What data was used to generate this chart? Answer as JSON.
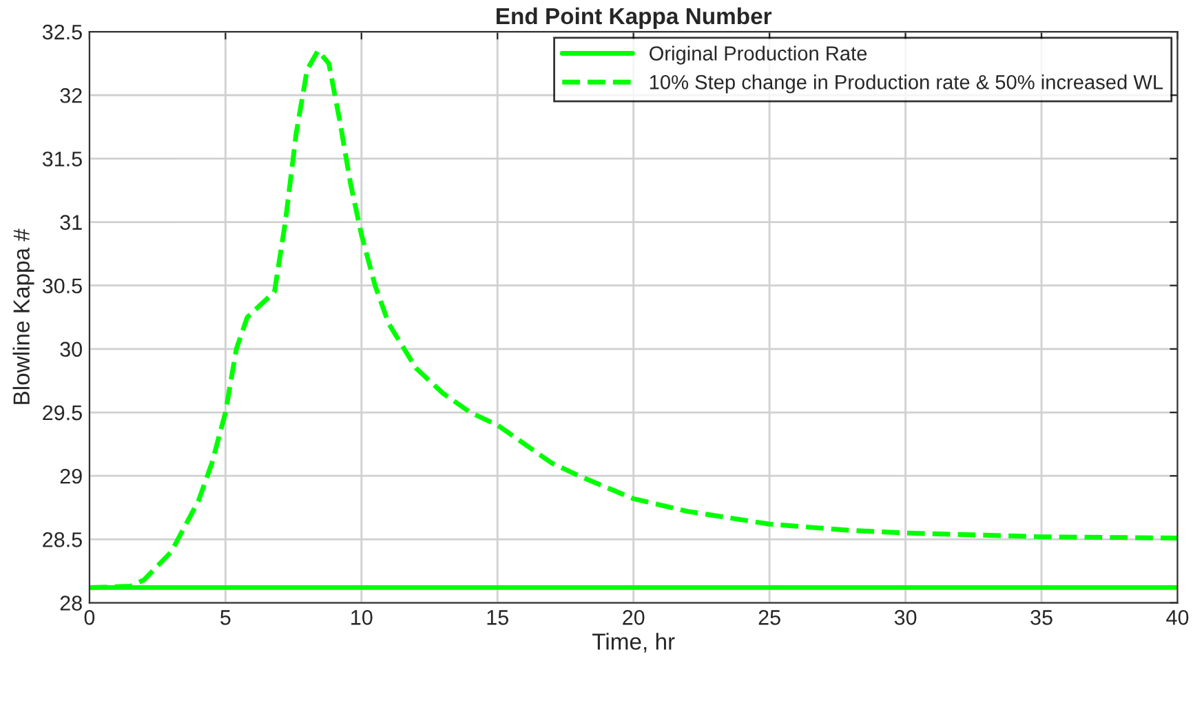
{
  "chart_data": {
    "type": "line",
    "title": "End Point Kappa Number",
    "xlabel": "Time, hr",
    "ylabel": "Blowline Kappa #",
    "xlim": [
      0,
      40
    ],
    "ylim": [
      28,
      32.5
    ],
    "xticks": [
      0,
      5,
      10,
      15,
      20,
      25,
      30,
      35,
      40
    ],
    "yticks": [
      28,
      28.5,
      29,
      29.5,
      30,
      30.5,
      31,
      31.5,
      32,
      32.5
    ],
    "grid": true,
    "legend": "top right",
    "marker": "none",
    "series": [
      {
        "name": "Original Production Rate",
        "color": "#00ff00",
        "line_style": "solid",
        "x": [
          0,
          40
        ],
        "values": [
          28.12,
          28.12
        ]
      },
      {
        "name": "10% Step change in Production rate & 50% increased WL",
        "color": "#00ff00",
        "line_style": "dashed",
        "x": [
          0,
          1.5,
          2,
          3,
          4,
          4.5,
          5,
          5.4,
          5.8,
          6.3,
          6.8,
          7.2,
          7.6,
          8,
          8.4,
          8.8,
          9.2,
          9.6,
          10,
          10.5,
          11,
          12,
          13,
          14,
          15,
          16,
          17,
          18,
          20,
          22,
          25,
          28,
          30,
          35,
          40
        ],
        "values": [
          28.12,
          28.13,
          28.18,
          28.4,
          28.8,
          29.1,
          29.5,
          30.0,
          30.25,
          30.35,
          30.45,
          31.0,
          31.7,
          32.2,
          32.35,
          32.25,
          31.8,
          31.3,
          30.9,
          30.5,
          30.2,
          29.85,
          29.65,
          29.5,
          29.4,
          29.25,
          29.1,
          29.0,
          28.82,
          28.72,
          28.62,
          28.57,
          28.55,
          28.52,
          28.51
        ]
      }
    ]
  }
}
